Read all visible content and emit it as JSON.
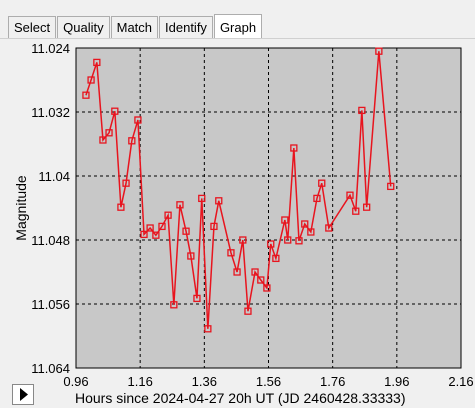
{
  "tabs": [
    "Select",
    "Quality",
    "Match",
    "Identify",
    "Graph"
  ],
  "selected_tab": 4,
  "chart_data": {
    "type": "line",
    "y_label": "Magnitude",
    "x_label": "Hours since 2024-04-27 20h UT (JD 2460428.33333)",
    "x": [
      0.991,
      1.007,
      1.025,
      1.044,
      1.063,
      1.081,
      1.1,
      1.116,
      1.134,
      1.153,
      1.172,
      1.191,
      1.209,
      1.228,
      1.247,
      1.265,
      1.284,
      1.303,
      1.318,
      1.337,
      1.352,
      1.371,
      1.39,
      1.405,
      1.443,
      1.462,
      1.48,
      1.496,
      1.518,
      1.536,
      1.555,
      1.567,
      1.583,
      1.611,
      1.62,
      1.639,
      1.655,
      1.673,
      1.692,
      1.711,
      1.726,
      1.748,
      1.814,
      1.832,
      1.851,
      1.866,
      1.904,
      1.941
    ],
    "series": [
      {
        "color": "#e8141e",
        "values": [
          11.0299,
          11.028,
          11.0258,
          11.0355,
          11.0346,
          11.0319,
          11.0439,
          11.0409,
          11.0356,
          11.033,
          11.0473,
          11.0465,
          11.0474,
          11.0463,
          11.0449,
          11.0561,
          11.0436,
          11.0469,
          11.05,
          11.0553,
          11.0428,
          11.0591,
          11.0463,
          11.0431,
          11.0496,
          11.052,
          11.048,
          11.0569,
          11.052,
          11.053,
          11.054,
          11.0485,
          11.0503,
          11.0455,
          11.048,
          11.0365,
          11.0481,
          11.046,
          11.047,
          11.0428,
          11.0409,
          11.0465,
          11.0424,
          11.0444,
          11.0318,
          11.0439,
          11.0244,
          11.0413
        ]
      }
    ],
    "xlim": [
      0.96,
      2.16
    ],
    "xticks": [
      0.96,
      1.16,
      1.36,
      1.56,
      1.76,
      1.96,
      2.16
    ],
    "ylim": [
      11.024,
      11.064
    ],
    "yticks": [
      11.024,
      11.032,
      11.04,
      11.048,
      11.056,
      11.064
    ],
    "y_inverted": true,
    "grid": true
  }
}
